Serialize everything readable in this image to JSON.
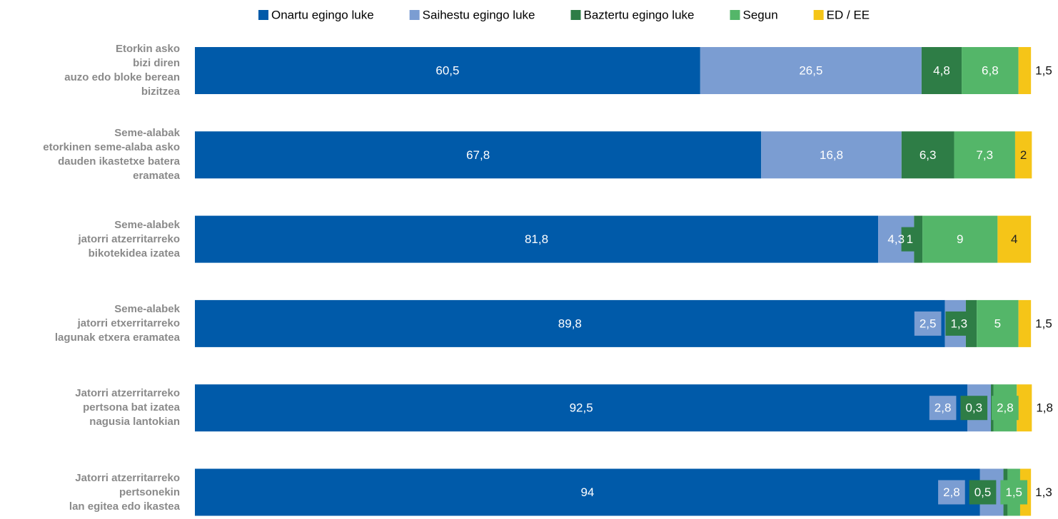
{
  "chart_data": {
    "type": "stacked_barh",
    "categories": [
      "Etorkin asko\nbizi diren\nauzo edo bloke berean\nbizitzea",
      "Seme-alabak\netorkinen seme-alaba asko\ndauden ikastetxe batera\neramatea",
      "Seme-alabek\njatorri atzerritarreko\nbikotekidea izatea",
      "Seme-alabek\njatorri etxerritarreko\nlagunak etxera eramatea",
      "Jatorri atzerritarreko\npertsona bat izatea\nnagusia lantokian",
      "Jatorri atzerritarreko\npertsonekin\nlan egitea edo ikastea"
    ],
    "series": [
      {
        "name": "Onartu egingo luke",
        "color": "#005aa9",
        "values": [
          60.5,
          67.8,
          81.8,
          89.8,
          92.5,
          94
        ],
        "value_labels": [
          "60,5",
          "67,8",
          "81,8",
          "89,8",
          "92,5",
          "94"
        ]
      },
      {
        "name": "Saihestu egingo luke",
        "color": "#7b9dd2",
        "values": [
          26.5,
          16.8,
          4.3,
          2.5,
          2.8,
          2.8
        ],
        "value_labels": [
          "26,5",
          "16,8",
          "4,3",
          "2,5",
          "2,8",
          "2,8"
        ]
      },
      {
        "name": "Baztertu egingo luke",
        "color": "#2e7d46",
        "values": [
          4.8,
          6.3,
          1,
          1.3,
          0.3,
          0.5
        ],
        "value_labels": [
          "4,8",
          "6,3",
          "1",
          "1,3",
          "0,3",
          "0,5"
        ]
      },
      {
        "name": "Segun",
        "color": "#54b669",
        "values": [
          6.8,
          7.3,
          9,
          5,
          2.8,
          1.5
        ],
        "value_labels": [
          "6,8",
          "7,3",
          "9",
          "5",
          "2,8",
          "1,5"
        ]
      },
      {
        "name": "ED / EE",
        "color": "#f5c518",
        "values": [
          1.5,
          2,
          4,
          1.5,
          1.8,
          1.3
        ],
        "value_labels": [
          "1,5",
          "2",
          "4",
          "1,5",
          "1,8",
          "1,3"
        ]
      }
    ],
    "xlim": [
      0,
      100
    ],
    "legend": "top"
  }
}
